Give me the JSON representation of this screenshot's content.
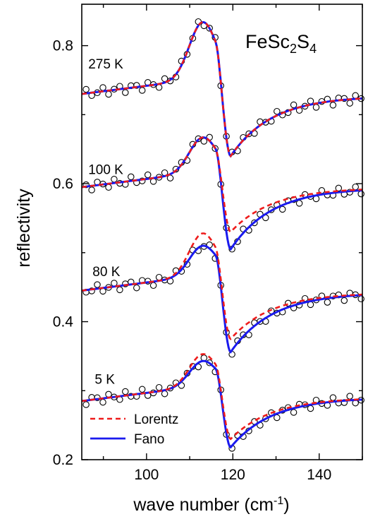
{
  "chart_data": {
    "type": "line",
    "title": "FeSc2S4",
    "title_parts": {
      "base1": "FeSc",
      "sub1": "2",
      "base2": "S",
      "sub2": "4"
    },
    "xlabel": "wave number (cm-1)",
    "xlabel_parts": {
      "main": "wave number (cm",
      "sup": "-1",
      "close": ")"
    },
    "ylabel": "reflectivity",
    "xlim": [
      85,
      150
    ],
    "ylim": [
      0.2,
      0.86
    ],
    "xticks": [
      100,
      120,
      140
    ],
    "yticks": [
      0.2,
      0.4,
      0.6,
      0.8
    ],
    "xtick_labels": [
      "100",
      "120",
      "140"
    ],
    "ytick_labels": [
      "0.2",
      "0.4",
      "0.6",
      "0.8"
    ],
    "legend": {
      "position": "bottom-left",
      "entries": [
        {
          "label": "Lorentz",
          "color": "#ee1c1c",
          "style": "dashed"
        },
        {
          "label": "Fano",
          "color": "#1a1aee",
          "style": "solid"
        }
      ]
    },
    "series": [
      {
        "temperature": "275 K",
        "label_anchor": [
          86.5,
          0.767
        ],
        "baseline": 0.73,
        "end": 0.727,
        "peak": 0.834,
        "dip": 0.64,
        "drift": 0.0,
        "lorentz_peak": 0.834,
        "lorentz_dip": 0.64
      },
      {
        "temperature": "100 K",
        "label_anchor": [
          86.5,
          0.614
        ],
        "baseline": 0.595,
        "end": 0.594,
        "peak": 0.667,
        "dip": 0.505,
        "drift": 0.0,
        "lorentz_peak": 0.667,
        "lorentz_dip": 0.53
      },
      {
        "temperature": "80 K",
        "label_anchor": [
          87.5,
          0.466
        ],
        "baseline": 0.445,
        "end": 0.442,
        "peak": 0.51,
        "dip": 0.356,
        "drift": 0.0,
        "lorentz_peak": 0.528,
        "lorentz_dip": 0.375
      },
      {
        "temperature": "5 K",
        "label_anchor": [
          88.0,
          0.31
        ],
        "baseline": 0.285,
        "end": 0.29,
        "peak": 0.343,
        "dip": 0.218,
        "drift": 0.0,
        "lorentz_peak": 0.353,
        "lorentz_dip": 0.23
      }
    ],
    "markers": "open circles (experimental data)"
  },
  "colors": {
    "lorentz": "#ee1c1c",
    "fano": "#1a1aee",
    "data": "#000000"
  }
}
